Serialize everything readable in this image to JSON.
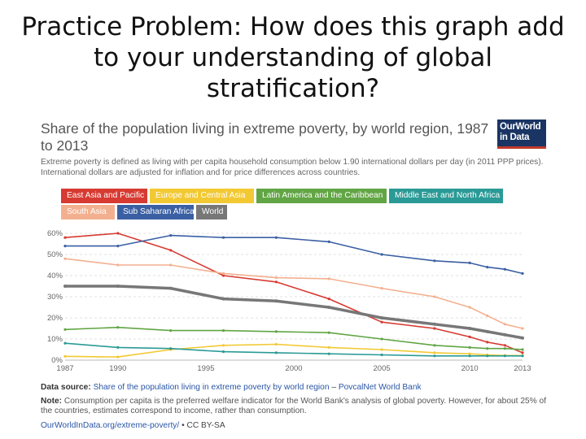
{
  "slide": {
    "title": "Practice Problem: How does this graph add to your understanding of global stratification?"
  },
  "logo": {
    "line1": "OurWorld",
    "line2": "in Data"
  },
  "chart_data": {
    "type": "line",
    "title": "Share of the population living in extreme poverty, by world region, 1987 to 2013",
    "subtitle": "Extreme poverty is defined as living with per capita household consumption below 1.90 international dollars per day (in 2011 PPP prices). International dollars are adjusted for inflation and for price differences across countries.",
    "xlabel": "",
    "ylabel": "",
    "x_ticks": [
      "1987",
      "1990",
      "1995",
      "2000",
      "2005",
      "2010",
      "2013"
    ],
    "y_ticks": [
      "0%",
      "10%",
      "20%",
      "30%",
      "40%",
      "50%",
      "60%"
    ],
    "xlim": [
      1987,
      2013
    ],
    "ylim": [
      0,
      60
    ],
    "grid": true,
    "legend_position": "top",
    "series": [
      {
        "name": "East Asia and Pacific",
        "color": "#d73a31",
        "x": [
          1987,
          1990,
          1993,
          1996,
          1999,
          2002,
          2005,
          2008,
          2010,
          2011,
          2012,
          2013
        ],
        "y": [
          58,
          60,
          52,
          40,
          37,
          29,
          18,
          15,
          11,
          8.5,
          7,
          3.5
        ]
      },
      {
        "name": "Europe and Central Asia",
        "color": "#f2c933",
        "x": [
          1987,
          1990,
          1993,
          1996,
          1999,
          2002,
          2005,
          2008,
          2010,
          2011,
          2012,
          2013
        ],
        "y": [
          1.8,
          1.5,
          5,
          7,
          7.5,
          6,
          5,
          3.5,
          3,
          2.5,
          2.2,
          2.2
        ]
      },
      {
        "name": "Latin America and the Caribbean",
        "color": "#61a544",
        "x": [
          1987,
          1990,
          1993,
          1996,
          1999,
          2002,
          2005,
          2008,
          2010,
          2011,
          2012,
          2013
        ],
        "y": [
          14.5,
          15.5,
          14,
          14,
          13.5,
          13,
          10,
          7,
          6,
          5.5,
          5.5,
          5
        ]
      },
      {
        "name": "Middle East and North Africa",
        "color": "#2a9a96",
        "x": [
          1987,
          1990,
          1993,
          1996,
          1999,
          2002,
          2005,
          2008,
          2010,
          2011,
          2012,
          2013
        ],
        "y": [
          8,
          6,
          5.5,
          4,
          3.5,
          3,
          2.5,
          2,
          2,
          2,
          2,
          2
        ]
      },
      {
        "name": "South Asia",
        "color": "#f3b08f",
        "x": [
          1987,
          1990,
          1993,
          1996,
          1999,
          2002,
          2005,
          2008,
          2010,
          2011,
          2012,
          2013
        ],
        "y": [
          48,
          45,
          45,
          41,
          39,
          38.5,
          34,
          30,
          25,
          21,
          17,
          15
        ]
      },
      {
        "name": "Sub Saharan Africa",
        "color": "#3a5fa3",
        "x": [
          1987,
          1990,
          1993,
          1996,
          1999,
          2002,
          2005,
          2008,
          2010,
          2011,
          2012,
          2013
        ],
        "y": [
          54,
          54,
          59,
          58,
          58,
          56,
          50,
          47,
          46,
          44,
          43,
          41
        ]
      },
      {
        "name": "World",
        "color": "#777777",
        "x": [
          1987,
          1990,
          1993,
          1996,
          1999,
          2002,
          2005,
          2008,
          2010,
          2011,
          2012,
          2013
        ],
        "y": [
          35,
          35,
          34,
          29,
          28,
          25,
          20,
          17,
          15,
          13.5,
          12,
          10.5
        ]
      }
    ]
  },
  "footer": {
    "source_label": "Data source:",
    "source_link": "Share of the population living in extreme poverty by world region",
    "source_sep": " – ",
    "source_org": "PovcalNet World Bank",
    "note_label": "Note:",
    "note_text": "Consumption per capita is the preferred welfare indicator for the World Bank's analysis of global poverty. However, for about 25% of the countries, estimates correspond to income, rather than consumption.",
    "url": "OurWorldInData.org/extreme-poverty/",
    "license": " • CC BY-SA"
  }
}
